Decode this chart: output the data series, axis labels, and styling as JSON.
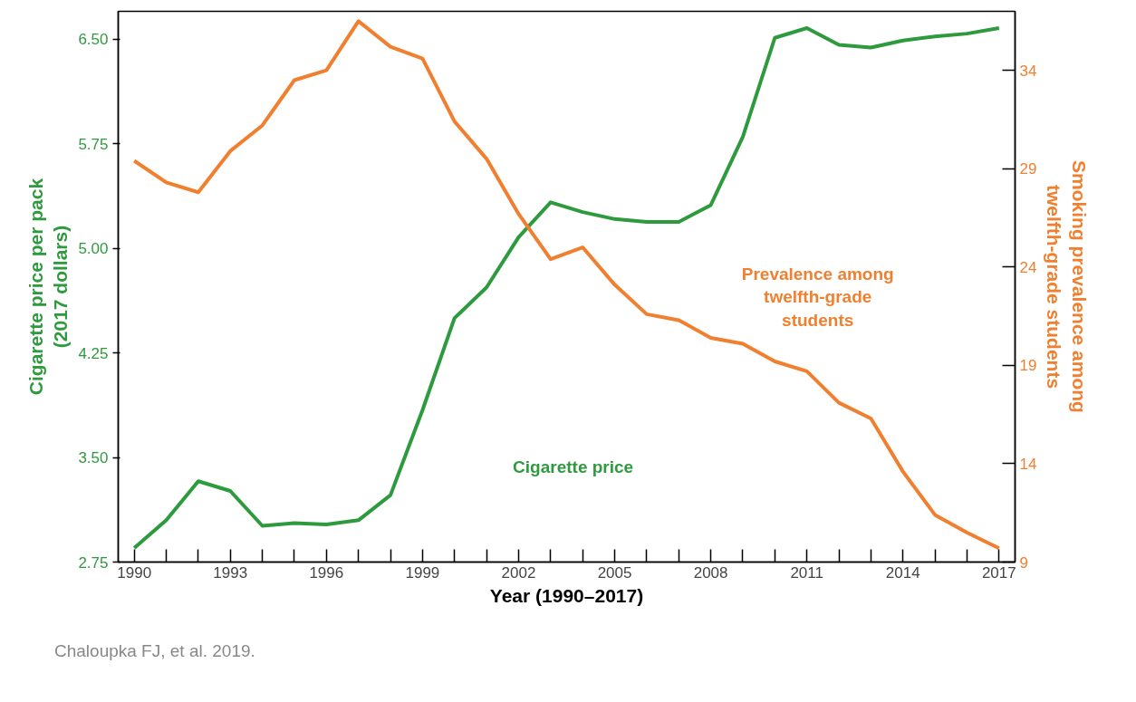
{
  "chart_data": {
    "type": "line",
    "xlabel": "Year (1990–2017)",
    "ylabel": "Cigarette price per pack (2017 dollars)",
    "y2label": "Smoking prevalence among twelfth-grade students",
    "x": [
      1990,
      1991,
      1992,
      1993,
      1994,
      1995,
      1996,
      1997,
      1998,
      1999,
      2000,
      2001,
      2002,
      2003,
      2004,
      2005,
      2006,
      2007,
      2008,
      2009,
      2010,
      2011,
      2012,
      2013,
      2014,
      2015,
      2016,
      2017
    ],
    "series": [
      {
        "name": "Cigarette price",
        "color": "#2e9a3e",
        "values": [
          2.85,
          3.05,
          3.33,
          3.26,
          3.01,
          3.03,
          3.02,
          3.05,
          3.23,
          3.84,
          4.5,
          4.72,
          5.08,
          5.33,
          5.26,
          5.21,
          5.19,
          5.19,
          5.31,
          5.8,
          6.51,
          6.58,
          6.46,
          6.44,
          6.49,
          6.52,
          6.54,
          6.58
        ]
      },
      {
        "name": "Prevalence among twelfth-grade students",
        "color": "#f07f2f",
        "axis": "y2",
        "values": [
          29.4,
          28.3,
          27.8,
          29.9,
          31.2,
          33.5,
          34.0,
          36.5,
          35.2,
          34.6,
          31.4,
          29.5,
          26.7,
          24.4,
          25.0,
          23.1,
          21.6,
          21.3,
          20.4,
          20.1,
          19.2,
          18.7,
          17.1,
          16.3,
          13.6,
          11.4,
          10.5,
          9.7
        ]
      }
    ],
    "xlim": [
      1989.5,
      2017.5
    ],
    "xticks": [
      {
        "value": 1990,
        "label": "1990"
      },
      {
        "value": 1991,
        "label": null
      },
      {
        "value": 1992,
        "label": null
      },
      {
        "value": 1993,
        "label": "1993"
      },
      {
        "value": 1994,
        "label": null
      },
      {
        "value": 1995,
        "label": null
      },
      {
        "value": 1996,
        "label": "1996"
      },
      {
        "value": 1997,
        "label": null
      },
      {
        "value": 1998,
        "label": null
      },
      {
        "value": 1999,
        "label": "1999"
      },
      {
        "value": 2000,
        "label": null
      },
      {
        "value": 2001,
        "label": null
      },
      {
        "value": 2002,
        "label": "2002"
      },
      {
        "value": 2003,
        "label": null
      },
      {
        "value": 2004,
        "label": null
      },
      {
        "value": 2005,
        "label": "2005"
      },
      {
        "value": 2006,
        "label": null
      },
      {
        "value": 2007,
        "label": null
      },
      {
        "value": 2008,
        "label": "2008"
      },
      {
        "value": 2009,
        "label": null
      },
      {
        "value": 2010,
        "label": null
      },
      {
        "value": 2011,
        "label": "2011"
      },
      {
        "value": 2012,
        "label": null
      },
      {
        "value": 2013,
        "label": null
      },
      {
        "value": 2014,
        "label": "2014"
      },
      {
        "value": 2015,
        "label": null
      },
      {
        "value": 2016,
        "label": null
      },
      {
        "value": 2017,
        "label": "2017"
      }
    ],
    "ylim": [
      2.75,
      6.7
    ],
    "yticks": [
      {
        "value": 2.75,
        "label": "2.75"
      },
      {
        "value": 3.5,
        "label": "3.50"
      },
      {
        "value": 4.25,
        "label": "4.25"
      },
      {
        "value": 5.0,
        "label": "5.00"
      },
      {
        "value": 5.75,
        "label": "5.75"
      },
      {
        "value": 6.5,
        "label": "6.50"
      }
    ],
    "y2lim": [
      9,
      37
    ],
    "y2ticks": [
      9,
      14,
      19,
      24,
      29,
      34
    ],
    "grid": false,
    "legend": false,
    "marker": "none",
    "line_style": "solid",
    "annotations": [
      "Chaloupka FJ, et al. 2019."
    ]
  }
}
